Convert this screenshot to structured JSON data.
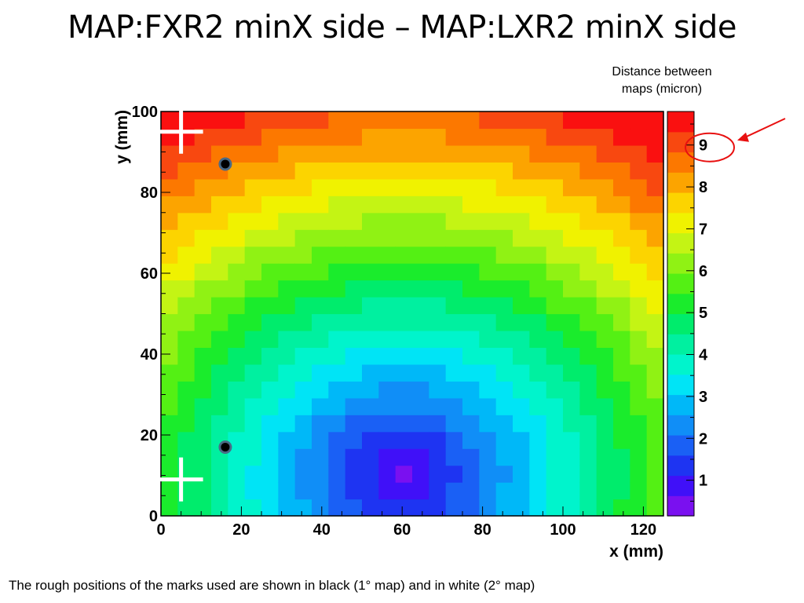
{
  "slide": {
    "title": "MAP:FXR2 minX side – MAP:LXR2 minX side",
    "scale_caption_line1": "Distance between",
    "scale_caption_line2": "maps (micron)",
    "footnote": "The rough positions of the marks used are shown in black (1° map) and in white (2° map)"
  },
  "chart_data": {
    "type": "heatmap",
    "xlabel": "x (mm)",
    "ylabel": "y (mm)",
    "xlim": [
      0,
      125
    ],
    "ylim": [
      0,
      100
    ],
    "x_ticks": [
      0,
      20,
      40,
      60,
      80,
      100,
      120
    ],
    "y_ticks": [
      0,
      20,
      40,
      60,
      80,
      100
    ],
    "colorbar": {
      "ticks": [
        1,
        2,
        3,
        4,
        5,
        6,
        7,
        8,
        9
      ],
      "zlim": [
        0.15,
        9.8
      ],
      "highlighted_tick": 9
    },
    "field_model": {
      "description": "distance grows with radial distance from minimum",
      "center_x": 60,
      "center_y": 10,
      "min_value": 0.5,
      "value_at_top_corners": 9.5,
      "bins_x": 30,
      "bins_y": 24
    },
    "marks_1st_map": [
      {
        "x": 16,
        "y": 87
      },
      {
        "x": 16,
        "y": 17
      }
    ],
    "marks_2nd_map": [
      {
        "x": 5,
        "y": 95
      },
      {
        "x": 5,
        "y": 9
      }
    ],
    "colors": {
      "palette": [
        "#7a10f0",
        "#4010f8",
        "#1e34f2",
        "#1a60f5",
        "#108ef7",
        "#00b8f8",
        "#00e4f6",
        "#00f4cc",
        "#00f0a0",
        "#00ec6c",
        "#1aec2c",
        "#54f014",
        "#90f214",
        "#c4f414",
        "#f0f200",
        "#fcd400",
        "#fca400",
        "#fc7800",
        "#f84810",
        "#fa1010"
      ],
      "mark_1st": "#000000",
      "mark_2nd": "#ffffff",
      "annotation": "#e81010"
    }
  }
}
